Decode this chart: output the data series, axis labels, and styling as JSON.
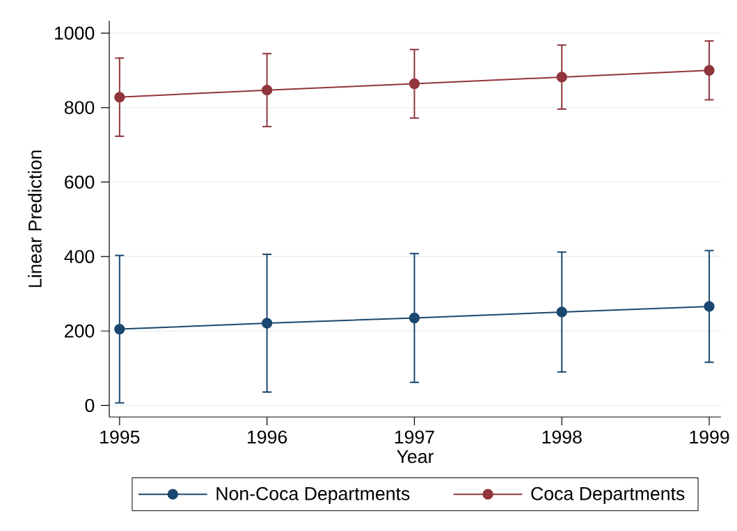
{
  "chart_data": {
    "type": "line",
    "xlabel": "Year",
    "ylabel": "Linear Prediction",
    "x": [
      1995,
      1996,
      1997,
      1998,
      1999
    ],
    "xlim": [
      1994.93,
      1999.08
    ],
    "xticks": [
      1995,
      1996,
      1997,
      1998,
      1999
    ],
    "ylim": [
      -31,
      1033
    ],
    "yticks": [
      0,
      200,
      400,
      600,
      800,
      1000
    ],
    "grid": "y",
    "legend": "bottom",
    "marker": "circle",
    "line_style": "solid",
    "series": [
      {
        "name": "Non-Coca Departments",
        "color": "#1a476f",
        "values": [
          205,
          221,
          235,
          251,
          266
        ],
        "errors": [
          198,
          185,
          173,
          161,
          150
        ]
      },
      {
        "name": "Coca Departments",
        "color": "#90353b",
        "values": [
          828,
          847,
          864,
          882,
          900
        ],
        "errors": [
          105,
          98,
          92,
          86,
          79
        ]
      }
    ]
  }
}
